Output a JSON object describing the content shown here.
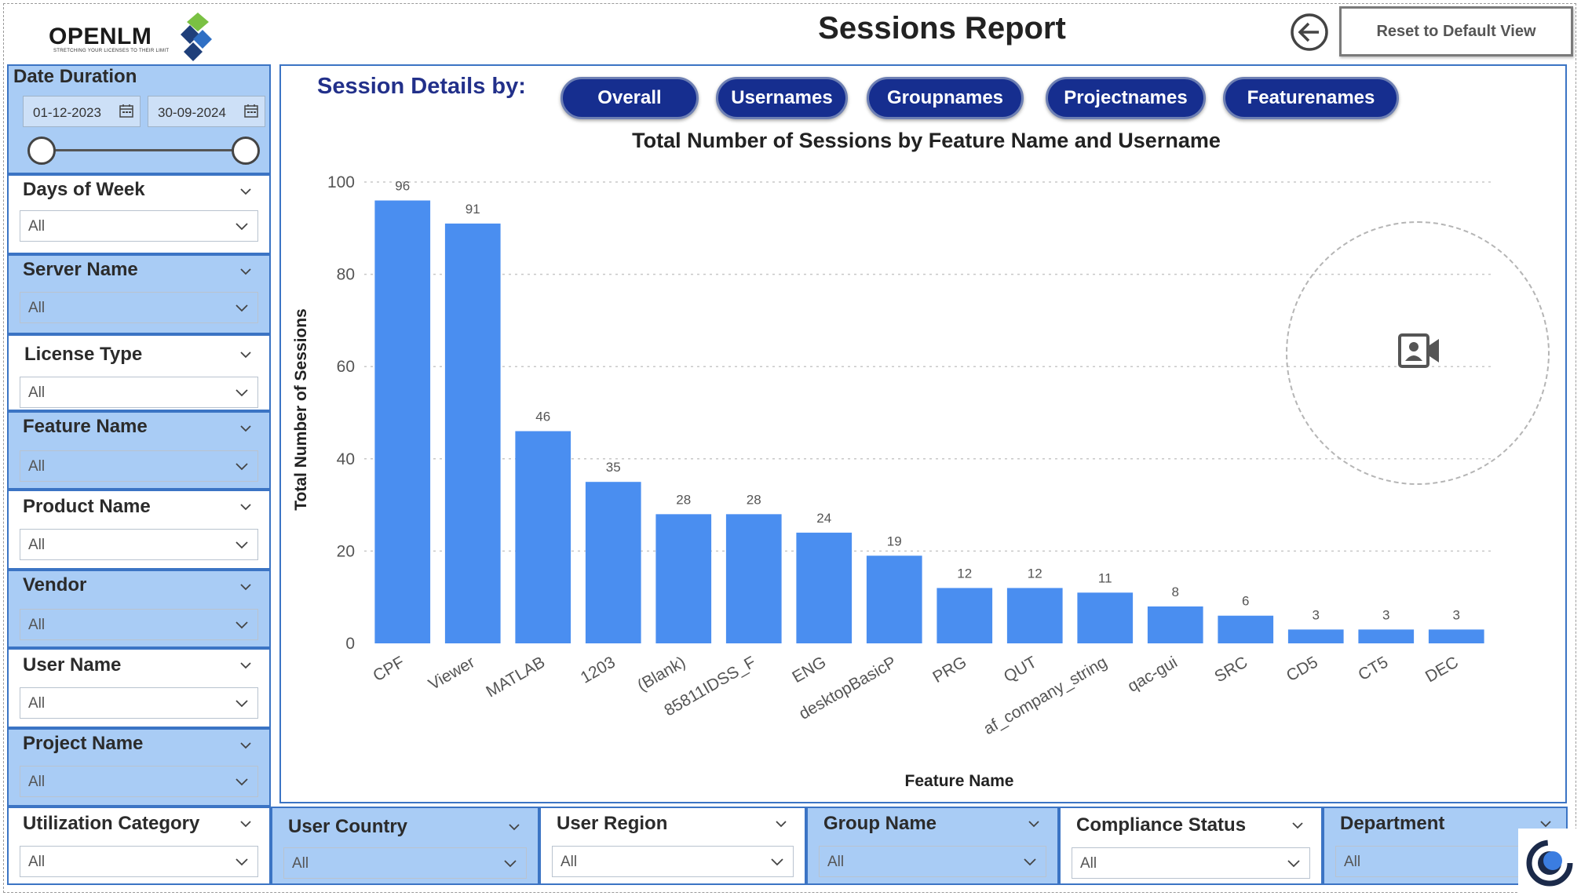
{
  "header": {
    "logo_text": "OPENLM",
    "logo_tagline": "STRETCHING YOUR LICENSES TO THEIR LIMIT",
    "title": "Sessions Report",
    "back_icon": "arrow-left-circle-icon",
    "reset_label": "Reset to Default View"
  },
  "sidebar": {
    "date_duration": {
      "title": "Date Duration",
      "start": "01-12-2023",
      "end": "30-09-2024",
      "range_start_fraction": 0.0,
      "range_end_fraction": 1.0
    },
    "slicers": [
      {
        "title": "Days of Week",
        "value": "All"
      },
      {
        "title": "Server Name",
        "value": "All"
      },
      {
        "title": "License Type",
        "value": "All"
      },
      {
        "title": "Feature Name",
        "value": "All"
      },
      {
        "title": "Product Name",
        "value": "All"
      },
      {
        "title": "Vendor",
        "value": "All"
      },
      {
        "title": "User Name",
        "value": "All"
      },
      {
        "title": "Project Name",
        "value": "All"
      },
      {
        "title": "Utilization Category",
        "value": "All"
      }
    ]
  },
  "bottom_slicers": [
    {
      "title": "User Country",
      "value": "All"
    },
    {
      "title": "User Region",
      "value": "All"
    },
    {
      "title": "Group Name",
      "value": "All"
    },
    {
      "title": "Compliance Status",
      "value": "All"
    },
    {
      "title": "Department",
      "value": "All"
    }
  ],
  "main": {
    "session_details_label": "Session Details by:",
    "tabs": [
      "Overall",
      "Usernames",
      "Groupnames",
      "Projectnames",
      "Featurenames"
    ]
  },
  "chart_data": {
    "type": "bar",
    "title": "Total Number of Sessions by Feature Name and Username",
    "xlabel": "Feature Name",
    "ylabel": "Total Number of Sessions",
    "ylim": [
      0,
      100
    ],
    "yticks": [
      0,
      20,
      40,
      60,
      80,
      100
    ],
    "grid": true,
    "categories": [
      "CPF",
      "Viewer",
      "MATLAB",
      "1203",
      "(Blank)",
      "85811IDSS_F",
      "ENG",
      "desktopBasicP",
      "PRG",
      "QUT",
      "af_company_string",
      "qac-gui",
      "SRC",
      "CD5",
      "CT5",
      "DEC"
    ],
    "values": [
      96,
      91,
      46,
      35,
      28,
      28,
      24,
      19,
      12,
      12,
      11,
      8,
      6,
      3,
      3,
      3
    ],
    "bar_color": "#4a8ef0"
  },
  "colors": {
    "slicer_blue": "#a9ccf5",
    "border_blue": "#3b74c4",
    "pill_navy": "#162e8f"
  }
}
